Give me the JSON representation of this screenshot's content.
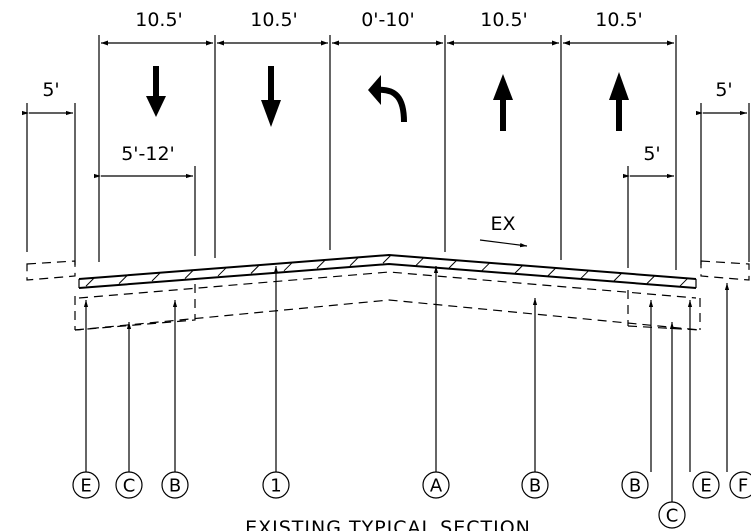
{
  "title": "EXISTING TYPICAL SECTION",
  "ex_label": "EX",
  "lane_widths": [
    "10.5'",
    "10.5'",
    "0'-10'",
    "10.5'",
    "10.5'"
  ],
  "lane_arrows": [
    "down-arrow-icon",
    "down-arrow-icon",
    "left-turn-arrow-icon",
    "up-arrow-icon",
    "up-arrow-icon"
  ],
  "dimensions": {
    "left_outer": "5'",
    "left_shoulder": "5'-12'",
    "right_shoulder": "5'",
    "right_outer": "5'"
  },
  "callouts": [
    "E",
    "C",
    "B",
    "1",
    "A",
    "B",
    "B",
    "C",
    "E",
    "F"
  ]
}
